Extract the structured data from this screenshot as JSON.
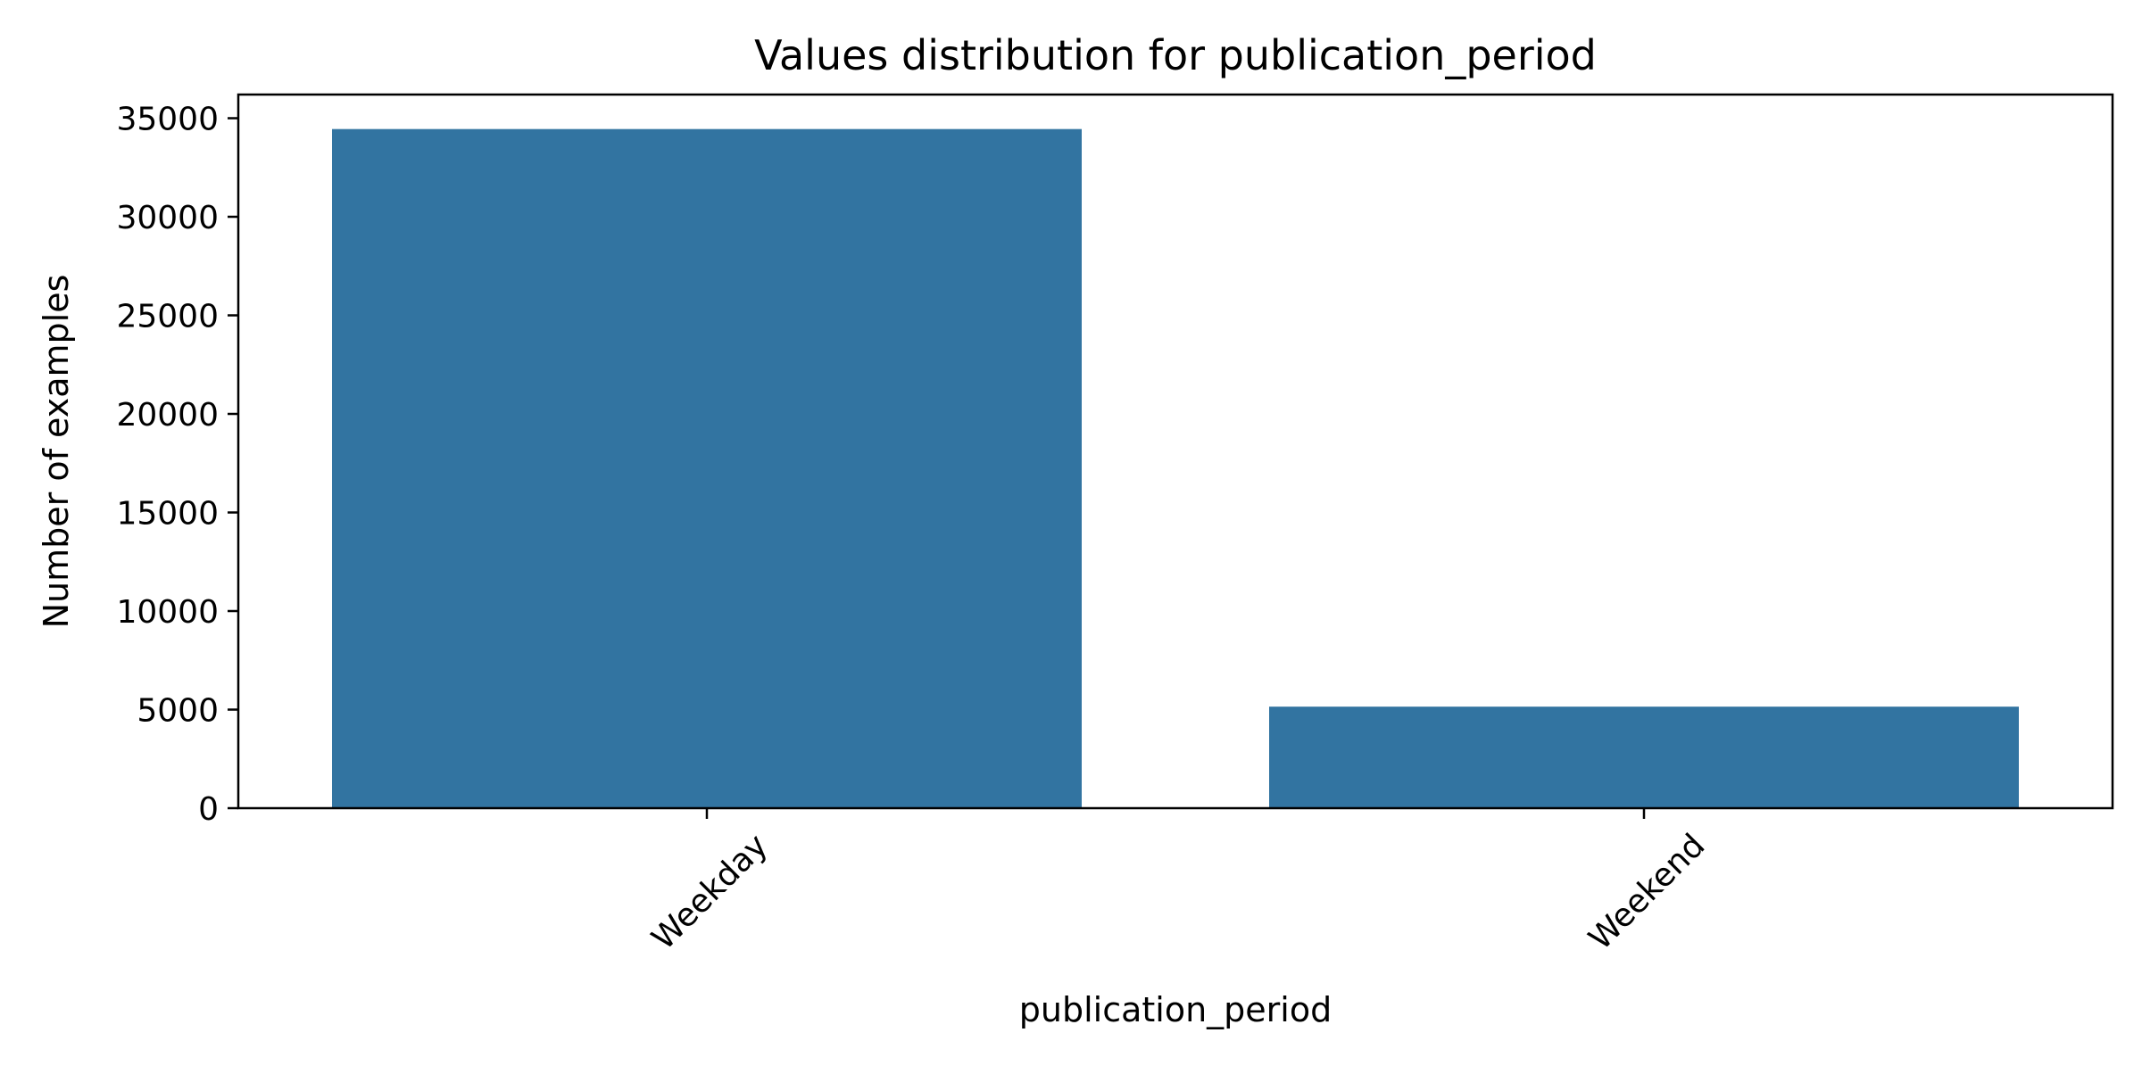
{
  "chart_data": {
    "type": "bar",
    "title": "Values distribution for publication_period",
    "xlabel": "publication_period",
    "ylabel": "Number of examples",
    "categories": [
      "Weekday",
      "Weekend"
    ],
    "values": [
      34450,
      5150
    ],
    "ylim": [
      0,
      36200
    ],
    "yticks": [
      0,
      5000,
      10000,
      15000,
      20000,
      25000,
      30000,
      35000
    ],
    "ytick_labels": [
      "0",
      "5000",
      "10000",
      "15000",
      "20000",
      "25000",
      "30000",
      "35000"
    ],
    "bar_color": "#3274a1",
    "grid": false,
    "legend": "none"
  }
}
